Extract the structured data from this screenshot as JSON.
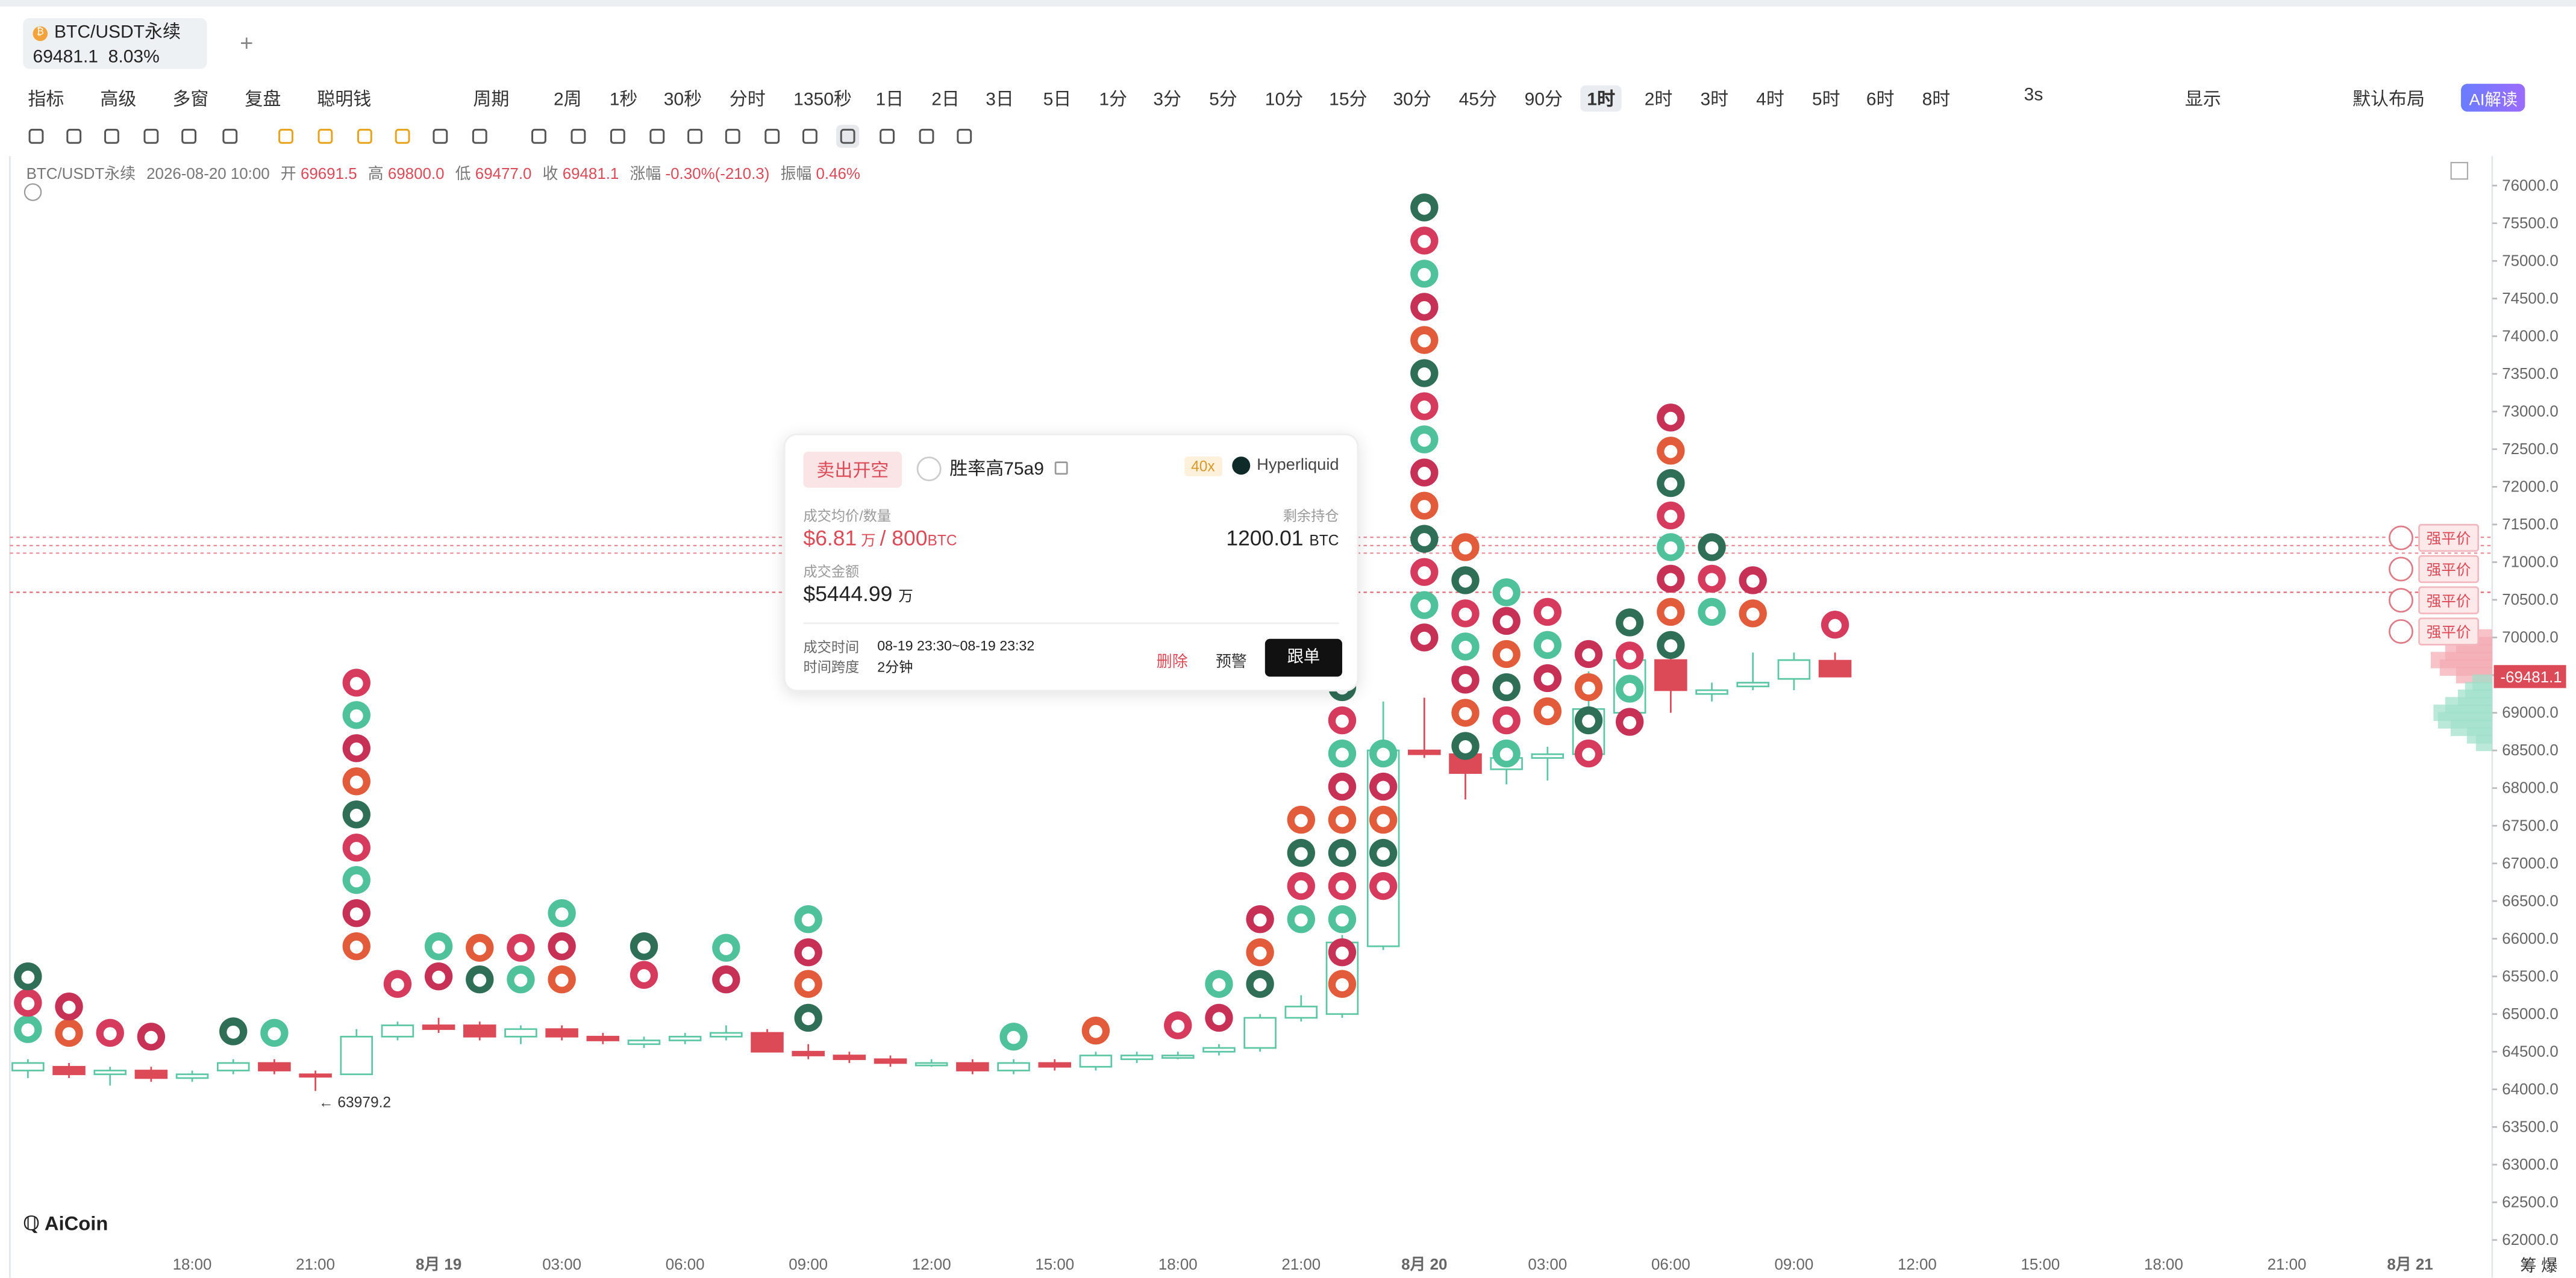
{
  "tab": {
    "symbol": "BTC/USDT永续",
    "price": "69481.1",
    "change": "8.03%",
    "add": "+"
  },
  "toolbar": {
    "items": [
      "指标",
      "高级",
      "多窗",
      "复盘",
      "聪明钱",
      "",
      "周期",
      "2周",
      "1秒",
      "30秒",
      "分时",
      "1350秒",
      "1日",
      "2日",
      "3日",
      "5日",
      "1分",
      "3分",
      "5分",
      "10分",
      "15分",
      "30分",
      "45分",
      "90分",
      "1时",
      "2时",
      "3时",
      "4时",
      "5时",
      "6时",
      "8时"
    ],
    "active": "1时",
    "right": [
      "3s",
      "显示",
      "默认布局"
    ],
    "ai": "AI解读"
  },
  "ohlc": {
    "symbol": "BTC/USDT永续",
    "datetime": "2026-08-20 10:00",
    "open_label": "开",
    "open": "69691.5",
    "high_label": "高",
    "high": "69800.0",
    "low_label": "低",
    "low": "69477.0",
    "close_label": "收",
    "close": "69481.1",
    "chg_label": "涨幅",
    "chg": "-0.30%(-210.3)",
    "amp_label": "振幅",
    "amp": "0.46%"
  },
  "popup": {
    "side": "卖出开空",
    "trader": "胜率高75a9",
    "leverage": "40x",
    "exchange": "Hyperliquid",
    "avg_label": "成交均价/数量",
    "avg_price": "$6.81",
    "avg_unit": "万",
    "qty": "800",
    "qty_unit": "BTC",
    "remain_label": "剩余持仓",
    "remain": "1200.01",
    "remain_unit": "BTC",
    "amount_label": "成交金额",
    "amount": "$5444.99",
    "amount_unit": "万",
    "time_label": "成交时间",
    "time": "08-19 23:30~08-19 23:32",
    "span_label": "时间跨度",
    "span": "2分钟",
    "delete": "删除",
    "alert": "预警",
    "follow": "跟单"
  },
  "liquidations": {
    "label": "强平价",
    "count": 4
  },
  "brand": "AiCoin",
  "corner": "筹 爆",
  "colors": {
    "up": "#5cc7a4",
    "down": "#dc4a57"
  },
  "chart_data": {
    "type": "candlestick",
    "y_axis": {
      "min": 62000,
      "max": 76000,
      "ticks": [
        "62000.0",
        "62500.0",
        "63000.0",
        "63500.0",
        "64000.0",
        "64500.0",
        "65000.0",
        "65500.0",
        "66000.0",
        "66500.0",
        "67000.0",
        "67500.0",
        "68000.0",
        "68500.0",
        "69000.0",
        "69500.0",
        "70000.0",
        "70500.0",
        "71000.0",
        "71500.0",
        "72000.0",
        "72500.0",
        "73000.0",
        "73500.0",
        "74000.0",
        "74500.0",
        "75000.0",
        "75500.0",
        "76000.0"
      ]
    },
    "x_ticks": [
      "18:00",
      "21:00",
      "8月 19",
      "03:00",
      "06:00",
      "09:00",
      "12:00",
      "15:00",
      "18:00",
      "21:00",
      "8月 20",
      "03:00",
      "06:00",
      "09:00",
      "12:00",
      "15:00",
      "18:00",
      "21:00",
      "8月 21"
    ],
    "last_price": "69481.1",
    "low_mark": "63979.2",
    "candles": [
      [
        64250,
        64400,
        64150,
        64350
      ],
      [
        64300,
        64350,
        64150,
        64200
      ],
      [
        64200,
        64300,
        64050,
        64250
      ],
      [
        64250,
        64300,
        64100,
        64150
      ],
      [
        64150,
        64250,
        64100,
        64200
      ],
      [
        64250,
        64400,
        64200,
        64350
      ],
      [
        64350,
        64400,
        64200,
        64250
      ],
      [
        64200,
        64250,
        63979,
        64180
      ],
      [
        64200,
        64800,
        64200,
        64700
      ],
      [
        64700,
        64900,
        64650,
        64850
      ],
      [
        64850,
        64950,
        64750,
        64800
      ],
      [
        64850,
        64900,
        64650,
        64700
      ],
      [
        64700,
        64850,
        64600,
        64800
      ],
      [
        64800,
        64850,
        64650,
        64700
      ],
      [
        64700,
        64750,
        64600,
        64650
      ],
      [
        64600,
        64700,
        64550,
        64650
      ],
      [
        64650,
        64750,
        64600,
        64700
      ],
      [
        64700,
        64850,
        64650,
        64750
      ],
      [
        64750,
        64800,
        64500,
        64500
      ],
      [
        64500,
        64600,
        64400,
        64450
      ],
      [
        64450,
        64500,
        64350,
        64400
      ],
      [
        64400,
        64450,
        64300,
        64350
      ],
      [
        64350,
        64400,
        64300,
        64350
      ],
      [
        64350,
        64400,
        64200,
        64250
      ],
      [
        64250,
        64400,
        64200,
        64350
      ],
      [
        64350,
        64400,
        64250,
        64300
      ],
      [
        64300,
        64500,
        64250,
        64450
      ],
      [
        64400,
        64500,
        64350,
        64450
      ],
      [
        64450,
        64500,
        64400,
        64450
      ],
      [
        64500,
        64600,
        64450,
        64550
      ],
      [
        64550,
        65000,
        64500,
        64950
      ],
      [
        64950,
        65250,
        64900,
        65100
      ],
      [
        65000,
        66050,
        64950,
        65950
      ],
      [
        65900,
        69150,
        65850,
        68500
      ],
      [
        68500,
        69200,
        68400,
        68450
      ],
      [
        68450,
        68500,
        67850,
        68200
      ],
      [
        68250,
        68450,
        68050,
        68400
      ],
      [
        68400,
        68550,
        68100,
        68450
      ],
      [
        68450,
        69550,
        68400,
        69050
      ],
      [
        69000,
        69900,
        68950,
        69700
      ],
      [
        69700,
        69850,
        69000,
        69300
      ],
      [
        69250,
        69400,
        69150,
        69300
      ],
      [
        69350,
        69800,
        69300,
        69400
      ],
      [
        69450,
        69800,
        69300,
        69700
      ],
      [
        69691.5,
        69800,
        69477,
        69481.1
      ]
    ]
  }
}
